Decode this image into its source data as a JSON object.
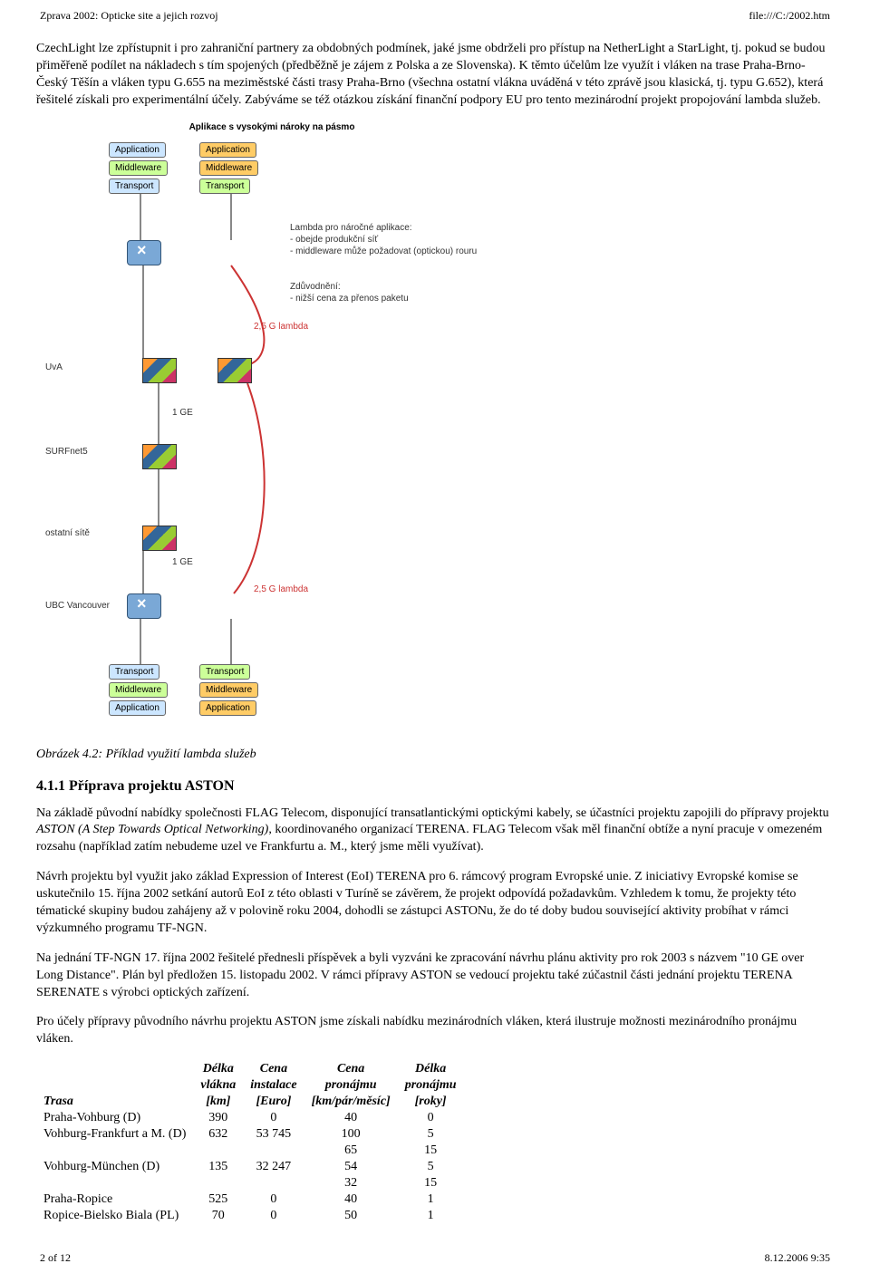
{
  "header": {
    "left": "Zprava 2002: Opticke site a jejich rozvoj",
    "right": "file:///C:/2002.htm"
  },
  "para1": "CzechLight lze zpřístupnit i pro zahraniční partnery za obdobných podmínek, jaké jsme obdrželi pro přístup na NetherLight a StarLight, tj. pokud se budou přiměřeně podílet na nákladech s tím spojených (předběžně je zájem z Polska a ze Slovenska). K těmto účelům lze využít i vláken na trase Praha-Brno-Český Těšín a vláken typu G.655 na meziměstské části trasy Praha-Brno (všechna ostatní vlákna uváděná v této zprávě jsou klasická, tj. typu G.652), která řešitelé získali pro experimentální účely. Zabýváme se též otázkou získání finanční podpory EU pro tento mezinárodní projekt propojování lambda služeb.",
  "diagram": {
    "title": "Aplikace s vysokými nároky na pásmo",
    "left_stack_top": [
      "Application",
      "Middleware",
      "Transport"
    ],
    "right_stack_top": [
      "Application",
      "Middleware",
      "Transport"
    ],
    "left_stack_bot": [
      "Transport",
      "Middleware",
      "Application"
    ],
    "right_stack_bot": [
      "Transport",
      "Middleware",
      "Application"
    ],
    "side_labels": {
      "uva": "UvA",
      "surfnet": "SURFnet5",
      "ostatni": "ostatní sítě",
      "ubc": "UBC Vancouver"
    },
    "annot_right_top": {
      "title": "Lambda pro náročné aplikace:",
      "l1": "- obejde produkční síť",
      "l2": "- middleware může požadovat (optickou) rouru"
    },
    "annot_right_mid": {
      "title": "Zdůvodnění:",
      "l1": "- nižší cena za přenos paketu"
    },
    "link_labels": {
      "lambda1": "2,5 G lambda",
      "ge1": "1 GE",
      "ge2": "1 GE",
      "lambda2": "2,5 G lambda"
    },
    "colors": {
      "lime": "#ccff99",
      "cyan": "#cce6ff",
      "orange": "#ffcc66",
      "link_red": "#cc3333",
      "link_gray": "#888888"
    }
  },
  "caption": "Obrázek 4.2: Příklad využití lambda služeb",
  "section_title": "4.1.1  Příprava projektu ASTON",
  "para2_a": "Na základě původní nabídky společnosti FLAG Telecom, disponující transatlantickými optickými kabely, se účastníci projektu zapojili do přípravy projektu ",
  "para2_i": "ASTON (A Step Towards Optical Networking)",
  "para2_b": ", koordinovaného organizací TERENA. FLAG Telecom však měl finanční obtíže a nyní pracuje v omezeném rozsahu (například zatím nebudeme uzel ve Frankfurtu a. M., který jsme měli využívat).",
  "para3": "Návrh projektu byl využit jako základ Expression of Interest (EoI) TERENA pro 6. rámcový program Evropské unie. Z iniciativy Evropské komise se uskutečnilo 15. října 2002 setkání autorů EoI z této oblasti v Turíně se závěrem, že projekt odpovídá požadavkům. Vzhledem k tomu, že projekty této tématické skupiny budou zahájeny až v polovině roku 2004, dohodli se zástupci ASTONu, že do té doby budou související aktivity probíhat v rámci výzkumného programu TF-NGN.",
  "para4": "Na jednání TF-NGN 17. října 2002 řešitelé přednesli příspěvek a byli vyzváni ke zpracování návrhu plánu aktivity pro rok 2003 s názvem \"10 GE over Long Distance\". Plán byl předložen 15. listopadu 2002. V rámci přípravy ASTON se vedoucí projektu také zúčastnil části jednání projektu TERENA SERENATE s výrobci optických zařízení.",
  "para5": "Pro účely přípravy původního návrhu projektu ASTON jsme získali nabídku mezinárodních vláken, která ilustruje možnosti mezinárodního pronájmu vláken.",
  "table": {
    "head": {
      "trasa": "Trasa",
      "delka_l1": "Délka",
      "delka_l2": "vlákna",
      "delka_l3": "[km]",
      "cenai_l1": "Cena",
      "cenai_l2": "instalace",
      "cenai_l3": "[Euro]",
      "cenap_l1": "Cena",
      "cenap_l2": "pronájmu",
      "cenap_l3": "[km/pár/měsíc]",
      "delkap_l1": "Délka",
      "delkap_l2": "pronájmu",
      "delkap_l3": "[roky]"
    },
    "rows": [
      {
        "trasa": "Praha-Vohburg (D)",
        "km": "390",
        "inst": "0",
        "pron": "40",
        "roky": "0"
      },
      {
        "trasa": "Vohburg-Frankfurt a M. (D)",
        "km": "632",
        "inst": "53 745",
        "pron": "100",
        "roky": "5"
      },
      {
        "trasa": "",
        "km": "",
        "inst": "",
        "pron": "65",
        "roky": "15"
      },
      {
        "trasa": "Vohburg-München (D)",
        "km": "135",
        "inst": "32 247",
        "pron": "54",
        "roky": "5"
      },
      {
        "trasa": "",
        "km": "",
        "inst": "",
        "pron": "32",
        "roky": "15"
      },
      {
        "trasa": "Praha-Ropice",
        "km": "525",
        "inst": "0",
        "pron": "40",
        "roky": "1"
      },
      {
        "trasa": "Ropice-Bielsko Biala (PL)",
        "km": "70",
        "inst": "0",
        "pron": "50",
        "roky": "1"
      }
    ]
  },
  "footer": {
    "left": "2 of 12",
    "right": "8.12.2006 9:35"
  }
}
